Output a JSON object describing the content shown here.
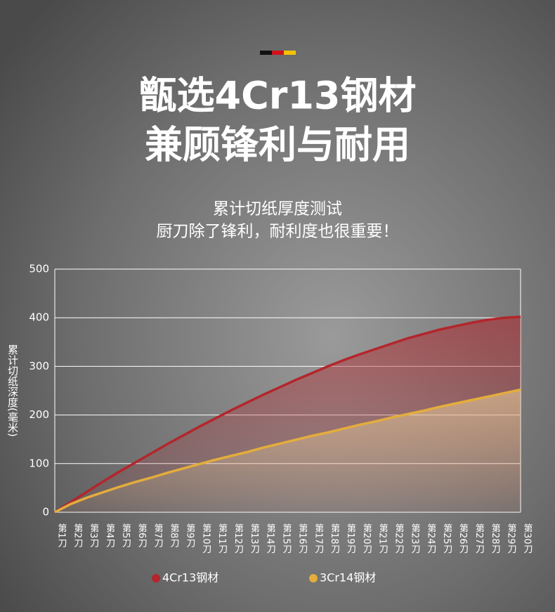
{
  "chart_data": {
    "type": "line",
    "title": [
      "甑选4Cr13钢材",
      "兼顾锋利与耐用"
    ],
    "subtitle": [
      "累计切纸厚度测试",
      "厨刀除了锋利，耐利度也很重要！"
    ],
    "y_label": "累计切纸深度(毫米)",
    "categories": [
      "第1刀",
      "第2刀",
      "第3刀",
      "第4刀",
      "第5刀",
      "第6刀",
      "第7刀",
      "第8刀",
      "第9刀",
      "第10刀",
      "第11刀",
      "第12刀",
      "第13刀",
      "第14刀",
      "第15刀",
      "第16刀",
      "第17刀",
      "第18刀",
      "第19刀",
      "第20刀",
      "第21刀",
      "第22刀",
      "第23刀",
      "第24刀",
      "第25刀",
      "第26刀",
      "第27刀",
      "第28刀",
      "第29刀",
      "第30刀"
    ],
    "series": [
      {
        "name": "4Cr13钢材",
        "color": "#b3262c",
        "values": [
          0,
          21,
          42,
          63,
          83,
          102,
          121,
          140,
          158,
          176,
          193,
          210,
          226,
          242,
          257,
          272,
          286,
          300,
          313,
          325,
          336,
          347,
          358,
          367,
          376,
          383,
          390,
          396,
          400,
          402
        ]
      },
      {
        "name": "3Cr14钢材",
        "color": "#e3ad3c",
        "values": [
          0,
          17,
          30,
          41,
          52,
          62,
          71,
          81,
          90,
          99,
          108,
          116,
          124,
          133,
          141,
          149,
          157,
          164,
          172,
          180,
          187,
          195,
          202,
          209,
          217,
          224,
          231,
          238,
          245,
          252
        ]
      }
    ],
    "ylim": [
      0,
      500
    ],
    "yticks": [
      0,
      100,
      200,
      300,
      400,
      500
    ],
    "grid": true,
    "legend": "bottom"
  }
}
